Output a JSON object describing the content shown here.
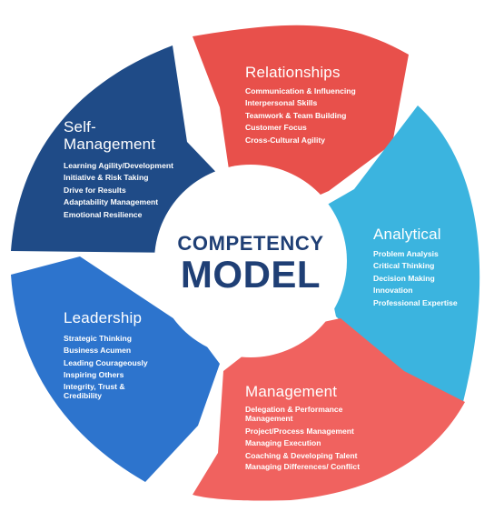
{
  "colors": {
    "relationships": "#e8504b",
    "self_management": "#1f4b87",
    "analytical": "#3bb4df",
    "leadership": "#2d74cd",
    "management": "#f0625f",
    "center_text": "#1f3f75"
  },
  "center": {
    "line1": "COMPETENCY",
    "line2": "MODEL"
  },
  "segments": {
    "relationships": {
      "title": "Relationships",
      "items": [
        "Communication & Influencing",
        "Interpersonal Skills",
        "Teamwork & Team Building",
        "Customer Focus",
        "Cross-Cultural Agility"
      ]
    },
    "self_management": {
      "title": "Self-Management",
      "items": [
        "Learning Agility/Development",
        "Initiative & Risk Taking",
        "Drive for Results",
        "Adaptability Management",
        "Emotional Resilience"
      ]
    },
    "analytical": {
      "title": "Analytical",
      "items": [
        "Problem Analysis",
        "Critical Thinking",
        "Decision Making",
        "Innovation",
        "Professional Expertise"
      ]
    },
    "leadership": {
      "title": "Leadership",
      "items": [
        "Strategic Thinking",
        "Business Acumen",
        "Leading Courageously",
        "Inspiring Others",
        "Integrity, Trust & Credibility"
      ]
    },
    "management": {
      "title": "Management",
      "items": [
        "Delegation & Performance Management",
        "Project/Process Management",
        "Managing Execution",
        "Coaching & Developing Talent",
        "Managing Differences/ Conflict"
      ]
    }
  }
}
